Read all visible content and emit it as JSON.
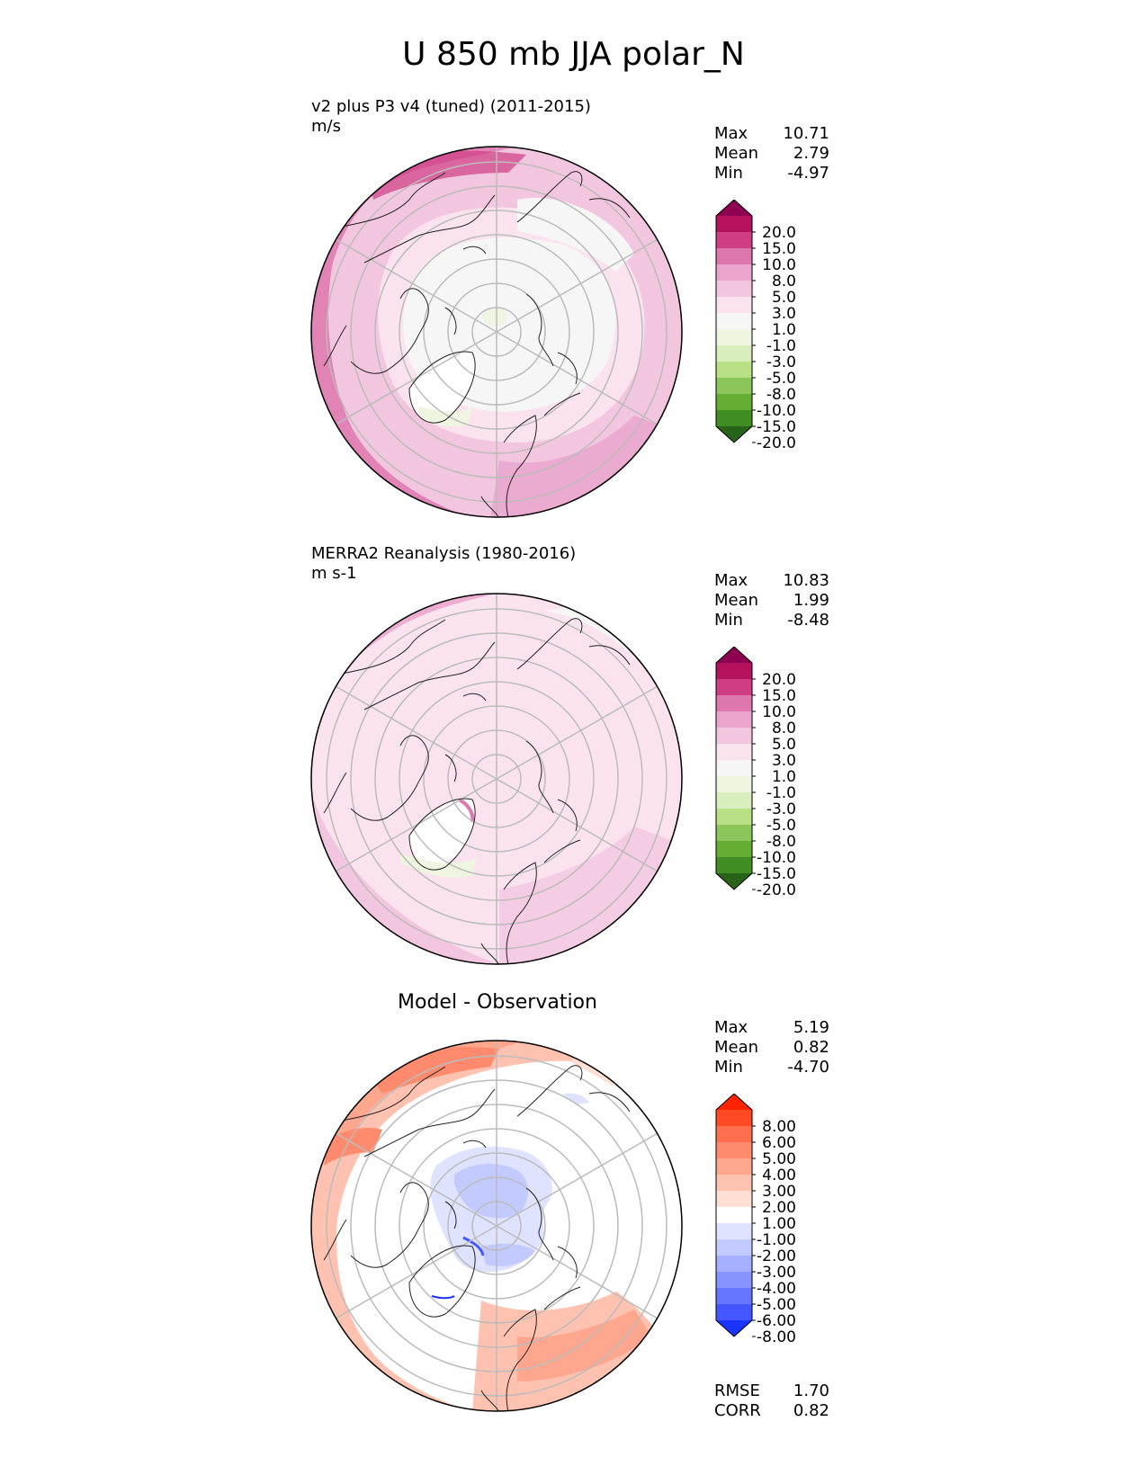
{
  "figure": {
    "title": "U 850 mb JJA polar_N"
  },
  "panels": [
    {
      "id": "test",
      "title_lines": [
        "v2 plus P3 v4 (tuned) (2011-2015)",
        "m/s"
      ],
      "stats": [
        {
          "label": "Max",
          "value": "10.71"
        },
        {
          "label": "Mean",
          "value": "2.79"
        },
        {
          "label": "Min",
          "value": "-4.97"
        }
      ],
      "colorbar": {
        "ticks": [
          "20.0",
          "15.0",
          "10.0",
          "8.0",
          "5.0",
          "3.0",
          "1.0",
          "-1.0",
          "-3.0",
          "-5.0",
          "-8.0",
          "-10.0",
          "-15.0",
          "-20.0"
        ],
        "colors": [
          "#8e0152",
          "#b5125e",
          "#cf3d84",
          "#de77ae",
          "#eaa6cd",
          "#f3c6e0",
          "#fae3ef",
          "#f6f6f6",
          "#eef5e0",
          "#d9eebf",
          "#b8e186",
          "#8cc559",
          "#66ad33",
          "#3f8d23",
          "#276419"
        ]
      }
    },
    {
      "id": "reference",
      "title_lines": [
        "MERRA2 Reanalysis (1980-2016)",
        "m s-1"
      ],
      "stats": [
        {
          "label": "Max",
          "value": "10.83"
        },
        {
          "label": "Mean",
          "value": "1.99"
        },
        {
          "label": "Min",
          "value": "-8.48"
        }
      ],
      "colorbar": {
        "ticks": [
          "20.0",
          "15.0",
          "10.0",
          "8.0",
          "5.0",
          "3.0",
          "1.0",
          "-1.0",
          "-3.0",
          "-5.0",
          "-8.0",
          "-10.0",
          "-15.0",
          "-20.0"
        ],
        "colors": [
          "#8e0152",
          "#b5125e",
          "#cf3d84",
          "#de77ae",
          "#eaa6cd",
          "#f3c6e0",
          "#fae3ef",
          "#f6f6f6",
          "#eef5e0",
          "#d9eebf",
          "#b8e186",
          "#8cc559",
          "#66ad33",
          "#3f8d23",
          "#276419"
        ]
      }
    },
    {
      "id": "difference",
      "center_title": "Model - Observation",
      "stats": [
        {
          "label": "Max",
          "value": "5.19"
        },
        {
          "label": "Mean",
          "value": "0.82"
        },
        {
          "label": "Min",
          "value": "-4.70"
        }
      ],
      "colorbar": {
        "ticks": [
          "8.00",
          "6.00",
          "5.00",
          "4.00",
          "3.00",
          "2.00",
          "1.00",
          "-1.00",
          "-2.00",
          "-3.00",
          "-4.00",
          "-5.00",
          "-6.00",
          "-8.00"
        ],
        "colors": [
          "#ff2200",
          "#ff4a24",
          "#ff6e4e",
          "#ff8a6e",
          "#ffa68e",
          "#ffc2b0",
          "#ffdfd4",
          "#ffffff",
          "#dfe3ff",
          "#c3caff",
          "#a5b0ff",
          "#8794ff",
          "#6676ff",
          "#4456ff",
          "#1a33ff"
        ]
      },
      "metrics": [
        {
          "label": "RMSE",
          "value": "1.70"
        },
        {
          "label": "CORR",
          "value": "0.82"
        }
      ]
    }
  ]
}
